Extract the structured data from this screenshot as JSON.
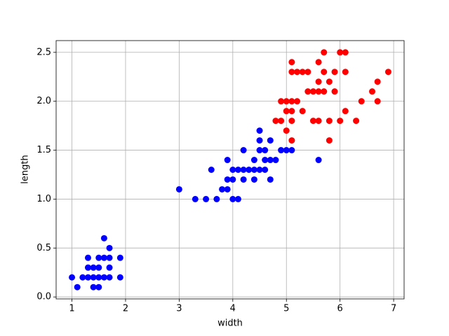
{
  "chart_data": {
    "type": "scatter",
    "xlabel": "width",
    "ylabel": "length",
    "xlim": [
      0.705,
      7.195
    ],
    "ylim": [
      -0.02,
      2.62
    ],
    "xticks": [
      1,
      2,
      3,
      4,
      5,
      6,
      7
    ],
    "yticks": [
      {
        "value": 0,
        "label": "0.0"
      },
      0.5,
      {
        "value": 1,
        "label": "1.0"
      },
      1.5,
      {
        "value": 2,
        "label": "2.0"
      },
      2.5
    ],
    "grid": true,
    "series": [
      {
        "color": "#0000ff",
        "x": [
          1.0,
          1.1,
          1.2,
          1.3,
          1.3,
          1.3,
          1.4,
          1.4,
          1.4,
          1.5,
          1.5,
          1.5,
          1.5,
          1.6,
          1.6,
          1.6,
          1.7,
          1.7,
          1.7,
          1.7,
          1.9,
          1.9,
          4.7,
          4.5,
          4.9,
          4.0,
          4.6,
          4.5,
          4.7,
          3.3,
          4.6,
          3.9,
          3.5,
          4.2,
          4.0,
          3.6,
          4.4,
          4.1,
          3.9,
          4.7,
          4.3,
          4.8,
          3.8,
          3.7,
          3.9,
          4.5,
          4.4,
          4.1,
          4.4,
          4.6,
          4.0,
          4.2,
          4.2,
          3.0,
          4.5,
          5.0,
          5.1,
          5.6
        ],
        "values": [
          0.2,
          0.1,
          0.2,
          0.2,
          0.3,
          0.4,
          0.1,
          0.2,
          0.3,
          0.1,
          0.2,
          0.3,
          0.4,
          0.2,
          0.4,
          0.6,
          0.2,
          0.3,
          0.4,
          0.5,
          0.2,
          0.4,
          1.4,
          1.5,
          1.5,
          1.3,
          1.5,
          1.3,
          1.6,
          1.0,
          1.3,
          1.4,
          1.0,
          1.5,
          1.0,
          1.3,
          1.4,
          1.0,
          1.1,
          1.2,
          1.3,
          1.4,
          1.1,
          1.0,
          1.2,
          1.6,
          1.3,
          1.3,
          1.2,
          1.4,
          1.2,
          1.3,
          1.2,
          1.1,
          1.7,
          1.5,
          1.5,
          1.4
        ]
      },
      {
        "color": "#ff0000",
        "x": [
          6.0,
          5.1,
          5.9,
          5.6,
          5.8,
          6.6,
          6.3,
          5.8,
          6.1,
          5.1,
          5.3,
          5.5,
          5.0,
          5.1,
          5.3,
          5.5,
          6.7,
          6.9,
          5.7,
          4.9,
          6.7,
          4.9,
          5.7,
          6.0,
          4.8,
          5.6,
          5.8,
          6.1,
          6.4,
          5.6,
          6.1,
          5.6,
          5.4,
          5.1,
          5.9,
          5.7,
          5.2,
          5.0,
          5.2,
          5.4,
          5.1,
          5.0,
          5.1
        ],
        "values": [
          2.5,
          1.9,
          2.1,
          1.8,
          2.2,
          2.1,
          1.8,
          1.8,
          2.5,
          2.0,
          1.9,
          2.1,
          2.0,
          2.4,
          2.3,
          1.8,
          2.2,
          2.3,
          2.3,
          2.0,
          2.0,
          1.8,
          2.1,
          1.8,
          1.8,
          2.1,
          1.6,
          1.9,
          2.0,
          2.2,
          2.3,
          2.4,
          2.1,
          2.3,
          2.3,
          2.5,
          2.3,
          1.9,
          2.0,
          2.3,
          1.8,
          1.7,
          1.6
        ]
      }
    ]
  }
}
